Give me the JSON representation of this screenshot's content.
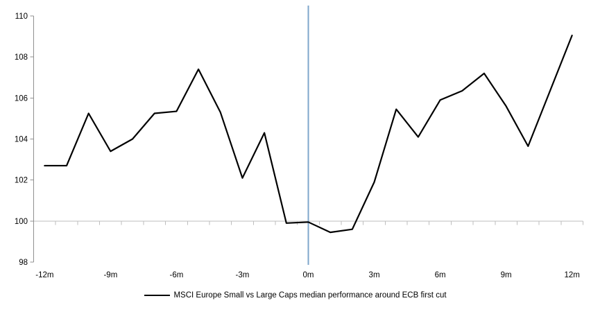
{
  "chart_data": {
    "type": "line",
    "title": "",
    "xlabel": "",
    "ylabel": "",
    "categories": [
      "-12m",
      "-11m",
      "-10m",
      "-9m",
      "-8m",
      "-7m",
      "-6m",
      "-5m",
      "-4m",
      "-3m",
      "-2m",
      "-1m",
      "0m",
      "1m",
      "2m",
      "3m",
      "4m",
      "5m",
      "6m",
      "7m",
      "8m",
      "9m",
      "10m",
      "11m",
      "12m"
    ],
    "series": [
      {
        "name": "MSCI Europe Small vs Large Caps median performance around ECB first cut",
        "color": "#000000",
        "values": [
          102.7,
          102.7,
          105.25,
          103.4,
          104.0,
          105.25,
          105.35,
          107.4,
          105.3,
          102.1,
          104.3,
          99.9,
          99.95,
          99.45,
          99.6,
          101.9,
          105.45,
          104.1,
          105.9,
          106.35,
          107.2,
          105.6,
          103.65,
          106.35,
          109.05
        ]
      }
    ],
    "ylim": [
      98,
      110
    ],
    "yticks": [
      98,
      100,
      102,
      104,
      106,
      108,
      110
    ],
    "x_label_interval": 3,
    "x_labels_shown": [
      "-12m",
      "-9m",
      "-6m",
      "-3m",
      "0m",
      "3m",
      "6m",
      "9m",
      "12m"
    ],
    "baseline_value": 100,
    "event_line": {
      "category": "0m",
      "color": "#7EA6CB"
    },
    "axis_color": "#8F8F8F",
    "gridline_color": "#BDBDBD",
    "grid": "baseline-only",
    "legend_position": "bottom-center"
  }
}
